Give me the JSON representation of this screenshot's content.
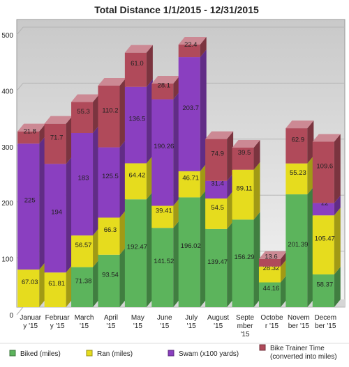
{
  "chart_data": {
    "type": "bar",
    "stacked": true,
    "title": "Total Distance 1/1/2015 - 12/31/2015",
    "xlabel": "",
    "ylabel": "",
    "ylim": [
      0,
      500
    ],
    "yticks": [
      0,
      100,
      200,
      300,
      400,
      500
    ],
    "grid": true,
    "legend_position": "bottom",
    "categories": [
      [
        "Januar",
        "y '15"
      ],
      [
        "Februar",
        "y '15"
      ],
      [
        "March",
        "'15"
      ],
      [
        "April",
        "'15"
      ],
      [
        "May",
        "'15"
      ],
      [
        "June",
        "'15"
      ],
      [
        "July",
        "'15"
      ],
      [
        "August",
        "'15"
      ],
      [
        "Septe",
        "mber",
        "'15"
      ],
      [
        "Octobe",
        "r '15"
      ],
      [
        "Novem",
        "ber '15"
      ],
      [
        "Decem",
        "ber '15"
      ]
    ],
    "series": [
      {
        "name": "Biked (miles)",
        "color": "#5cb45c",
        "values": [
          0,
          0,
          71.38,
          93.54,
          192.47,
          141.52,
          196.02,
          139.47,
          156.29,
          44.16,
          201.39,
          58.37
        ],
        "labels": [
          "",
          "",
          "71.38",
          "93.54",
          "192.47",
          "141.52",
          "196.02",
          "139.47",
          "156.29",
          "44.16",
          "201.39",
          "58.37"
        ]
      },
      {
        "name": "Ran (miles)",
        "color": "#e6dc1e",
        "values": [
          67.03,
          61.81,
          56.57,
          66.3,
          64.42,
          39.41,
          46.71,
          54.5,
          89.11,
          28.32,
          55.23,
          105.47
        ],
        "labels": [
          "67.03",
          "61.81",
          "56.57",
          "66.3",
          "64.42",
          "39.41",
          "46.71",
          "54.5",
          "89.11",
          "28.32",
          "55.23",
          "105.47"
        ]
      },
      {
        "name": "Swam (x100 yards)",
        "color": "#8a3fc0",
        "values": [
          225,
          194,
          183,
          125.5,
          136.5,
          190.26,
          203.7,
          31.4,
          0,
          0,
          0,
          22
        ],
        "labels": [
          "225",
          "194",
          "183",
          "125.5",
          "136.5",
          "190.26",
          "203.7",
          "31.4",
          "",
          "",
          "",
          "22"
        ]
      },
      {
        "name": "Bike Trainer Time (converted into miles)",
        "color": "#b04a5a",
        "values": [
          21.8,
          71.7,
          55.3,
          110.2,
          61.0,
          28.1,
          22.4,
          74.9,
          39.5,
          13.6,
          62.9,
          109.6
        ],
        "labels": [
          "21.8",
          "71.7",
          "55.3",
          "110.2",
          "61.0",
          "28.1",
          "22.4",
          "74.9",
          "39.5",
          "13.6",
          "62.9",
          "109.6"
        ]
      }
    ]
  },
  "legend": {
    "items": [
      {
        "text": "Biked (miles)",
        "icon": "biked-swatch-icon"
      },
      {
        "text": "Ran (miles)",
        "icon": "ran-swatch-icon"
      },
      {
        "text": "Swam (x100 yards)",
        "icon": "swam-swatch-icon"
      },
      {
        "text": [
          "Bike Trainer Time",
          "(converted into miles)"
        ],
        "icon": "trainer-swatch-icon"
      }
    ]
  }
}
